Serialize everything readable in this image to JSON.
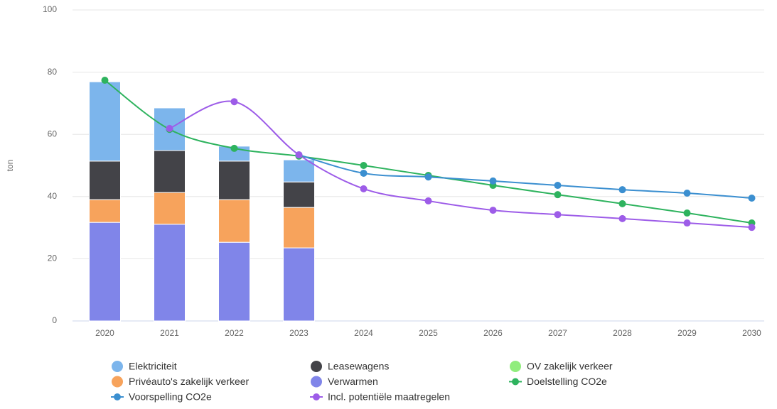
{
  "chart_data": {
    "type": "bar-line",
    "y_label": "ton",
    "categories": [
      "2020",
      "2021",
      "2022",
      "2023",
      "2024",
      "2025",
      "2026",
      "2027",
      "2028",
      "2029",
      "2030"
    ],
    "ylim": [
      0,
      100
    ],
    "yticks": [
      0,
      20,
      40,
      60,
      80,
      100
    ],
    "grid": true,
    "stacked": true,
    "legend": "bottom",
    "series": [
      {
        "name": "Elektriciteit",
        "kind": "bar",
        "color": "#7cb5ec",
        "values": [
          25.5,
          13.7,
          4.8,
          7.1,
          null,
          null,
          null,
          null,
          null,
          null,
          null
        ]
      },
      {
        "name": "Leasewagens",
        "kind": "bar",
        "color": "#434348",
        "values": [
          12.4,
          13.5,
          12.4,
          8.2,
          null,
          null,
          null,
          null,
          null,
          null,
          null
        ]
      },
      {
        "name": "OV zakelijk verkeer",
        "kind": "bar",
        "color": "#90ed7d",
        "values": [
          0,
          0,
          0,
          0,
          null,
          null,
          null,
          null,
          null,
          null,
          null
        ]
      },
      {
        "name": "Privéauto's zakelijk verkeer",
        "kind": "bar",
        "color": "#f7a35c",
        "values": [
          7.3,
          10.2,
          13.7,
          13.0,
          null,
          null,
          null,
          null,
          null,
          null,
          null
        ]
      },
      {
        "name": "Verwarmen",
        "kind": "bar",
        "color": "#8085e9",
        "values": [
          31.7,
          31.1,
          25.3,
          23.5,
          null,
          null,
          null,
          null,
          null,
          null,
          null
        ]
      },
      {
        "name": "Doelstelling CO2e",
        "kind": "line",
        "color": "#2eb35e",
        "values": [
          77.4,
          61.6,
          55.5,
          53.0,
          50.0,
          46.8,
          43.6,
          40.6,
          37.7,
          34.7,
          31.5
        ]
      },
      {
        "name": "Voorspelling CO2e",
        "kind": "line",
        "color": "#3b8fd0",
        "values": [
          null,
          null,
          null,
          53.4,
          47.5,
          46.3,
          45.0,
          43.6,
          42.2,
          41.1,
          39.5
        ]
      },
      {
        "name": "Incl. potentiële maatregelen",
        "kind": "line",
        "color": "#9d5ce8",
        "values": [
          null,
          61.9,
          70.5,
          53.4,
          42.5,
          38.6,
          35.6,
          34.2,
          32.9,
          31.5,
          30.1
        ]
      }
    ]
  }
}
